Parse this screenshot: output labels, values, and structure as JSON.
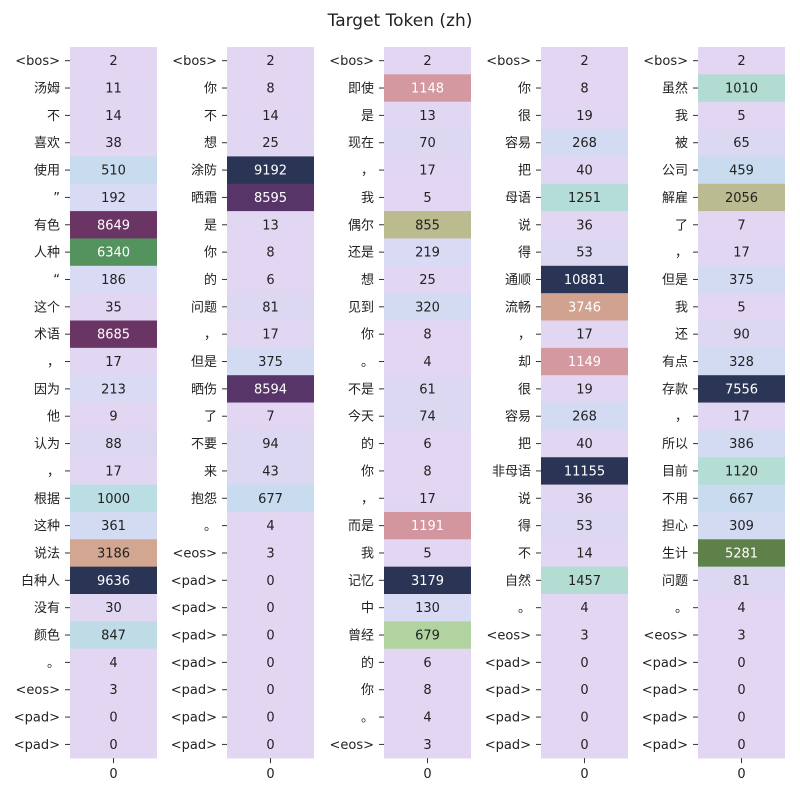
{
  "chart_data": {
    "type": "heatmap",
    "title": "Target Token (zh)",
    "x_tick_label": "0",
    "panels": [
      {
        "tokens": [
          "<bos>",
          "汤姆",
          "不",
          "喜欢",
          "使用",
          "”",
          "有色",
          "人种",
          "“",
          "这个",
          "术语",
          "，",
          "因为",
          "他",
          "认为",
          "，",
          "根据",
          "这种",
          "说法",
          "白种人",
          "没有",
          "颜色",
          "。",
          "<eos>",
          "<pad>",
          "<pad>"
        ],
        "values": [
          2,
          11,
          14,
          38,
          510,
          192,
          8649,
          6340,
          186,
          35,
          8685,
          17,
          213,
          9,
          88,
          17,
          1000,
          361,
          3186,
          9636,
          30,
          847,
          4,
          3,
          0,
          0
        ]
      },
      {
        "tokens": [
          "<bos>",
          "你",
          "不",
          "想",
          "涂防",
          "晒霜",
          "是",
          "你",
          "的",
          "问题",
          "，",
          "但是",
          "晒伤",
          "了",
          "不要",
          "来",
          "抱怨",
          "。",
          "<eos>",
          "<pad>",
          "<pad>",
          "<pad>",
          "<pad>",
          "<pad>",
          "<pad>",
          "<pad>"
        ],
        "values": [
          2,
          8,
          14,
          25,
          9192,
          8595,
          13,
          8,
          6,
          81,
          17,
          375,
          8594,
          7,
          94,
          43,
          677,
          4,
          3,
          0,
          0,
          0,
          0,
          0,
          0,
          0
        ]
      },
      {
        "tokens": [
          "<bos>",
          "即使",
          "是",
          "现在",
          "，",
          "我",
          "偶尔",
          "还是",
          "想",
          "见到",
          "你",
          "。",
          "不是",
          "今天",
          "的",
          "你",
          "，",
          "而是",
          "我",
          "记忆",
          "中",
          "曾经",
          "的",
          "你",
          "。",
          "<eos>"
        ],
        "values": [
          2,
          1148,
          13,
          70,
          17,
          5,
          855,
          219,
          25,
          320,
          8,
          4,
          61,
          74,
          6,
          8,
          17,
          1191,
          5,
          3179,
          130,
          679,
          6,
          8,
          4,
          3
        ]
      },
      {
        "tokens": [
          "<bos>",
          "你",
          "很",
          "容易",
          "把",
          "母语",
          "说",
          "得",
          "通顺",
          "流畅",
          "，",
          "却",
          "很",
          "容易",
          "把",
          "非母语",
          "说",
          "得",
          "不",
          "自然",
          "。",
          "<eos>",
          "<pad>",
          "<pad>",
          "<pad>",
          "<pad>"
        ],
        "values": [
          2,
          8,
          19,
          268,
          40,
          1251,
          36,
          53,
          10881,
          3746,
          17,
          1149,
          19,
          268,
          40,
          11155,
          36,
          53,
          14,
          1457,
          4,
          3,
          0,
          0,
          0,
          0
        ]
      },
      {
        "tokens": [
          "<bos>",
          "虽然",
          "我",
          "被",
          "公司",
          "解雇",
          "了",
          "，",
          "但是",
          "我",
          "还",
          "有点",
          "存款",
          "，",
          "所以",
          "目前",
          "不用",
          "担心",
          "生计",
          "问题",
          "。",
          "<eos>",
          "<pad>",
          "<pad>",
          "<pad>",
          "<pad>"
        ],
        "values": [
          2,
          1010,
          5,
          65,
          459,
          2056,
          7,
          17,
          375,
          5,
          90,
          328,
          7556,
          17,
          386,
          1120,
          667,
          309,
          5281,
          81,
          4,
          3,
          0,
          0,
          0,
          0
        ]
      }
    ]
  }
}
